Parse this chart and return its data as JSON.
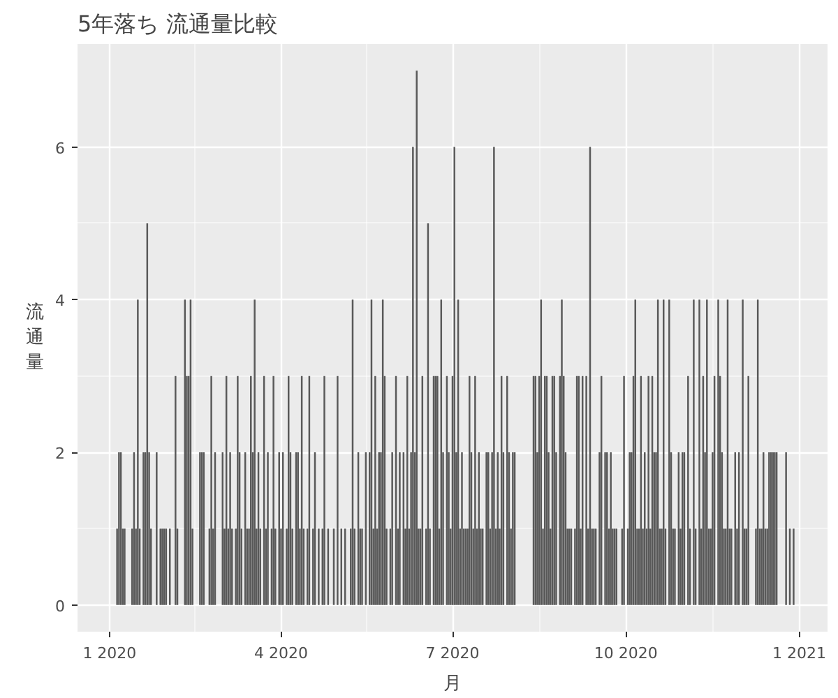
{
  "chart_data": {
    "type": "bar",
    "title": "5年落ち 流通量比較",
    "xlabel": "月",
    "ylabel": "流通量",
    "color": "#595959",
    "grid": true,
    "xlim": [
      "2019-12-15",
      "2021-01-16"
    ],
    "xticks": [
      {
        "value": "2020-01-01",
        "label": "1 2020"
      },
      {
        "value": "2020-04-01",
        "label": "4 2020"
      },
      {
        "value": "2020-07-01",
        "label": "7 2020"
      },
      {
        "value": "2020-10-01",
        "label": "10 2020"
      },
      {
        "value": "2021-01-01",
        "label": "1 2021"
      }
    ],
    "ylim": [
      -0.35,
      7.35
    ],
    "yticks": [
      0,
      2,
      4,
      6
    ],
    "x": [
      "2020-01-05",
      "2020-01-06",
      "2020-01-07",
      "2020-01-08",
      "2020-01-09",
      "2020-01-13",
      "2020-01-14",
      "2020-01-15",
      "2020-01-16",
      "2020-01-17",
      "2020-01-19",
      "2020-01-20",
      "2020-01-21",
      "2020-01-22",
      "2020-01-23",
      "2020-01-26",
      "2020-01-28",
      "2020-01-29",
      "2020-01-30",
      "2020-01-31",
      "2020-02-02",
      "2020-02-05",
      "2020-02-06",
      "2020-02-10",
      "2020-02-11",
      "2020-02-12",
      "2020-02-13",
      "2020-02-14",
      "2020-02-18",
      "2020-02-19",
      "2020-02-20",
      "2020-02-23",
      "2020-02-24",
      "2020-02-25",
      "2020-02-26",
      "2020-03-01",
      "2020-03-02",
      "2020-03-03",
      "2020-03-04",
      "2020-03-05",
      "2020-03-06",
      "2020-03-08",
      "2020-03-09",
      "2020-03-10",
      "2020-03-11",
      "2020-03-13",
      "2020-03-14",
      "2020-03-15",
      "2020-03-16",
      "2020-03-17",
      "2020-03-18",
      "2020-03-19",
      "2020-03-20",
      "2020-03-21",
      "2020-03-23",
      "2020-03-24",
      "2020-03-25",
      "2020-03-27",
      "2020-03-28",
      "2020-03-29",
      "2020-03-31",
      "2020-04-01",
      "2020-04-02",
      "2020-04-04",
      "2020-04-05",
      "2020-04-06",
      "2020-04-07",
      "2020-04-09",
      "2020-04-10",
      "2020-04-11",
      "2020-04-12",
      "2020-04-13",
      "2020-04-15",
      "2020-04-16",
      "2020-04-18",
      "2020-04-19",
      "2020-04-21",
      "2020-04-23",
      "2020-04-24",
      "2020-04-26",
      "2020-04-29",
      "2020-05-01",
      "2020-05-03",
      "2020-05-05",
      "2020-05-08",
      "2020-05-09",
      "2020-05-10",
      "2020-05-12",
      "2020-05-13",
      "2020-05-14",
      "2020-05-16",
      "2020-05-18",
      "2020-05-19",
      "2020-05-20",
      "2020-05-21",
      "2020-05-22",
      "2020-05-23",
      "2020-05-24",
      "2020-05-25",
      "2020-05-26",
      "2020-05-27",
      "2020-05-29",
      "2020-05-30",
      "2020-06-01",
      "2020-06-02",
      "2020-06-03",
      "2020-06-05",
      "2020-06-06",
      "2020-06-07",
      "2020-06-08",
      "2020-06-09",
      "2020-06-10",
      "2020-06-11",
      "2020-06-12",
      "2020-06-13",
      "2020-06-14",
      "2020-06-15",
      "2020-06-17",
      "2020-06-18",
      "2020-06-19",
      "2020-06-21",
      "2020-06-22",
      "2020-06-23",
      "2020-06-24",
      "2020-06-25",
      "2020-06-26",
      "2020-06-28",
      "2020-06-29",
      "2020-06-30",
      "2020-07-01",
      "2020-07-02",
      "2020-07-03",
      "2020-07-04",
      "2020-07-05",
      "2020-07-06",
      "2020-07-07",
      "2020-07-08",
      "2020-07-09",
      "2020-07-10",
      "2020-07-11",
      "2020-07-12",
      "2020-07-13",
      "2020-07-14",
      "2020-07-15",
      "2020-07-16",
      "2020-07-17",
      "2020-07-19",
      "2020-07-20",
      "2020-07-21",
      "2020-07-22",
      "2020-07-23",
      "2020-07-24",
      "2020-07-25",
      "2020-07-26",
      "2020-07-27",
      "2020-07-28",
      "2020-07-30",
      "2020-07-31",
      "2020-08-01",
      "2020-08-02",
      "2020-08-03",
      "2020-08-13",
      "2020-08-14",
      "2020-08-15",
      "2020-08-16",
      "2020-08-17",
      "2020-08-18",
      "2020-08-19",
      "2020-08-20",
      "2020-08-21",
      "2020-08-22",
      "2020-08-23",
      "2020-08-24",
      "2020-08-25",
      "2020-08-27",
      "2020-08-28",
      "2020-08-29",
      "2020-08-30",
      "2020-08-31",
      "2020-09-01",
      "2020-09-02",
      "2020-09-04",
      "2020-09-05",
      "2020-09-06",
      "2020-09-07",
      "2020-09-08",
      "2020-09-10",
      "2020-09-11",
      "2020-09-12",
      "2020-09-13",
      "2020-09-14",
      "2020-09-15",
      "2020-09-17",
      "2020-09-18",
      "2020-09-20",
      "2020-09-21",
      "2020-09-22",
      "2020-09-23",
      "2020-09-24",
      "2020-09-25",
      "2020-09-26",
      "2020-09-29",
      "2020-09-30",
      "2020-10-02",
      "2020-10-03",
      "2020-10-04",
      "2020-10-05",
      "2020-10-06",
      "2020-10-07",
      "2020-10-08",
      "2020-10-09",
      "2020-10-10",
      "2020-10-11",
      "2020-10-12",
      "2020-10-13",
      "2020-10-14",
      "2020-10-15",
      "2020-10-16",
      "2020-10-17",
      "2020-10-18",
      "2020-10-19",
      "2020-10-20",
      "2020-10-21",
      "2020-10-22",
      "2020-10-24",
      "2020-10-25",
      "2020-10-26",
      "2020-10-27",
      "2020-10-29",
      "2020-10-30",
      "2020-10-31",
      "2020-11-01",
      "2020-11-03",
      "2020-11-04",
      "2020-11-06",
      "2020-11-07",
      "2020-11-09",
      "2020-11-10",
      "2020-11-11",
      "2020-11-12",
      "2020-11-13",
      "2020-11-14",
      "2020-11-15",
      "2020-11-16",
      "2020-11-17",
      "2020-11-19",
      "2020-11-20",
      "2020-11-21",
      "2020-11-22",
      "2020-11-23",
      "2020-11-24",
      "2020-11-25",
      "2020-11-26",
      "2020-11-28",
      "2020-11-29",
      "2020-11-30",
      "2020-12-02",
      "2020-12-03",
      "2020-12-04",
      "2020-12-05",
      "2020-12-09",
      "2020-12-10",
      "2020-12-11",
      "2020-12-12",
      "2020-12-13",
      "2020-12-14",
      "2020-12-15",
      "2020-12-16",
      "2020-12-17",
      "2020-12-18",
      "2020-12-19",
      "2020-12-20",
      "2020-12-25",
      "2020-12-27",
      "2020-12-29"
    ],
    "values": [
      1,
      2,
      2,
      1,
      1,
      1,
      2,
      1,
      4,
      1,
      2,
      2,
      5,
      2,
      1,
      2,
      1,
      1,
      1,
      1,
      1,
      3,
      1,
      4,
      3,
      3,
      4,
      1,
      2,
      2,
      2,
      1,
      3,
      1,
      2,
      2,
      1,
      3,
      1,
      2,
      1,
      1,
      3,
      2,
      1,
      2,
      1,
      1,
      3,
      2,
      4,
      1,
      2,
      1,
      3,
      1,
      2,
      1,
      3,
      1,
      2,
      1,
      2,
      1,
      3,
      2,
      1,
      2,
      2,
      1,
      3,
      1,
      1,
      3,
      1,
      2,
      1,
      1,
      3,
      1,
      1,
      3,
      1,
      1,
      1,
      4,
      1,
      2,
      1,
      1,
      2,
      2,
      4,
      1,
      3,
      1,
      2,
      2,
      4,
      3,
      1,
      1,
      2,
      3,
      1,
      2,
      2,
      1,
      3,
      1,
      2,
      6,
      2,
      7,
      1,
      1,
      3,
      1,
      5,
      1,
      3,
      3,
      3,
      1,
      4,
      2,
      3,
      2,
      1,
      3,
      6,
      2,
      4,
      1,
      2,
      1,
      1,
      1,
      3,
      2,
      1,
      3,
      1,
      2,
      1,
      1,
      2,
      2,
      1,
      2,
      6,
      1,
      2,
      1,
      3,
      2,
      3,
      2,
      1,
      2,
      2,
      3,
      3,
      2,
      3,
      4,
      1,
      3,
      3,
      2,
      1,
      3,
      3,
      2,
      3,
      4,
      3,
      2,
      1,
      1,
      1,
      1,
      3,
      3,
      1,
      3,
      3,
      1,
      6,
      1,
      1,
      1,
      2,
      3,
      2,
      2,
      1,
      2,
      1,
      1,
      1,
      1,
      3,
      1,
      2,
      2,
      3,
      4,
      1,
      1,
      3,
      1,
      2,
      1,
      3,
      1,
      3,
      2,
      2,
      4,
      1,
      1,
      4,
      1,
      4,
      2,
      1,
      1,
      2,
      1,
      2,
      2,
      3,
      1,
      4,
      1,
      4,
      1,
      3,
      2,
      4,
      1,
      1,
      2,
      3,
      4,
      3,
      2,
      1,
      1,
      4,
      1,
      1,
      2,
      1,
      2,
      4,
      1,
      1,
      3,
      1,
      4,
      1,
      1,
      2,
      1,
      1,
      2,
      2,
      2,
      2,
      2,
      2,
      1,
      1
    ]
  }
}
